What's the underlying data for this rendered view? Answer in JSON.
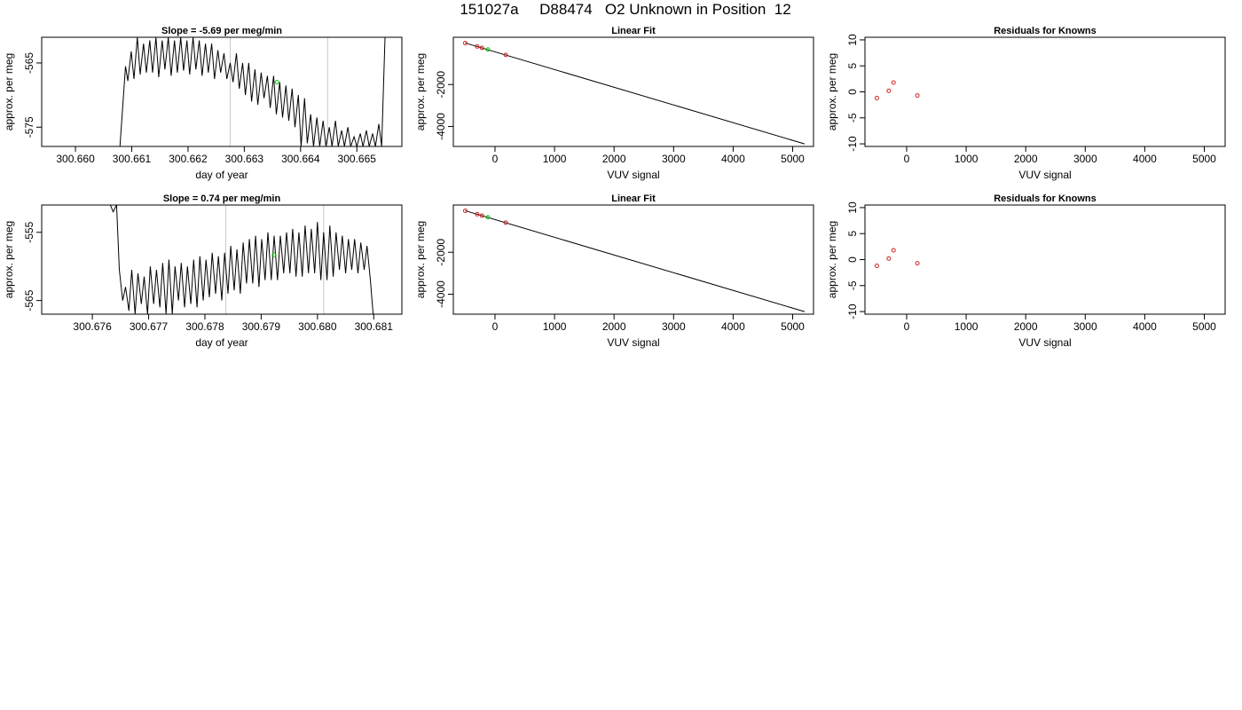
{
  "page_title": "151027a     D88474   O2 Unknown in Position  12",
  "chart_data": [
    {
      "type": "line",
      "title": "Slope =  -5.69  per meg/min",
      "xlabel": "day of year",
      "ylabel": "approx. per meg",
      "xlim": [
        300.6594,
        300.6658
      ],
      "ylim": [
        -578,
        -561
      ],
      "xticks": [
        300.66,
        300.661,
        300.662,
        300.663,
        300.664,
        300.665
      ],
      "xtick_labels": [
        "300.660",
        "300.661",
        "300.662",
        "300.663",
        "300.664",
        "300.665"
      ],
      "yticks": [
        -575,
        -565
      ],
      "ytick_labels": [
        "-575",
        "-565"
      ],
      "vlines": [
        300.66275,
        300.66448
      ],
      "series": [
        {
          "color": "#000000",
          "x": [
            300.66079,
            300.66089,
            300.66093,
            300.66099,
            300.66104,
            300.6611,
            300.66115,
            300.66121,
            300.66126,
            300.66132,
            300.66137,
            300.66143,
            300.66148,
            300.66154,
            300.66159,
            300.66165,
            300.6617,
            300.66176,
            300.66181,
            300.66187,
            300.66192,
            300.66198,
            300.66203,
            300.66209,
            300.66214,
            300.6622,
            300.66225,
            300.66231,
            300.66236,
            300.66242,
            300.66247,
            300.66253,
            300.66258,
            300.66264,
            300.66269,
            300.66275,
            300.6628,
            300.66286,
            300.66291,
            300.66297,
            300.66302,
            300.66308,
            300.66313,
            300.66319,
            300.66324,
            300.6633,
            300.66335,
            300.66341,
            300.66346,
            300.66352,
            300.66357,
            300.66363,
            300.66368,
            300.66374,
            300.66379,
            300.66385,
            300.6639,
            300.66396,
            300.66401,
            300.66407,
            300.66412,
            300.66418,
            300.66423,
            300.66429,
            300.66434,
            300.6644,
            300.66445,
            300.66451,
            300.66456,
            300.66462,
            300.66467,
            300.66473,
            300.66478,
            300.66484,
            300.66489,
            300.66495,
            300.665,
            300.66506,
            300.66511,
            300.66517,
            300.66522,
            300.66528,
            300.66533,
            300.66539,
            300.66544,
            300.6655
          ],
          "y": [
            -578.0,
            -565.5,
            -567.8,
            -563.2,
            -567.5,
            -561.0,
            -566.8,
            -562.0,
            -566.5,
            -561.5,
            -566.5,
            -561.0,
            -567.2,
            -561.5,
            -566.0,
            -561.0,
            -567.0,
            -561.5,
            -566.5,
            -561.0,
            -566.2,
            -561.5,
            -566.8,
            -561.0,
            -566.0,
            -561.5,
            -567.0,
            -562.0,
            -566.5,
            -562.0,
            -567.5,
            -563.0,
            -566.5,
            -563.5,
            -567.5,
            -565.0,
            -568.0,
            -563.5,
            -569.0,
            -565.0,
            -570.0,
            -565.0,
            -571.0,
            -566.0,
            -571.5,
            -566.5,
            -570.5,
            -567.0,
            -572.0,
            -567.0,
            -573.0,
            -568.0,
            -573.5,
            -568.5,
            -574.0,
            -569.0,
            -575.0,
            -570.0,
            -578.0,
            -570.5,
            -577.5,
            -573.0,
            -578.0,
            -573.5,
            -578.0,
            -574.0,
            -578.0,
            -575.0,
            -578.0,
            -574.0,
            -578.0,
            -575.5,
            -578.0,
            -575.0,
            -578.0,
            -576.5,
            -578.0,
            -576.0,
            -578.0,
            -575.5,
            -578.0,
            -576.0,
            -578.0,
            -574.5,
            -578.0,
            -561.0
          ]
        }
      ],
      "marker": {
        "x": 300.66358,
        "y": -568.0,
        "color": "#00cc00"
      }
    },
    {
      "type": "scatter",
      "title": "Linear Fit",
      "xlabel": "VUV signal",
      "ylabel": "approx. per meg",
      "xlim": [
        -700,
        5350
      ],
      "ylim": [
        -4950,
        250
      ],
      "xticks": [
        0,
        1000,
        2000,
        3000,
        4000,
        5000
      ],
      "xtick_labels": [
        "0",
        "1000",
        "2000",
        "3000",
        "4000",
        "5000"
      ],
      "yticks": [
        -4000,
        -2000
      ],
      "ytick_labels": [
        "-4000",
        "-2000"
      ],
      "fit_line": {
        "x": [
          -500,
          5200
        ],
        "y": [
          -22,
          -4830
        ]
      },
      "points": {
        "x": [
          -500,
          -300,
          -220,
          180
        ],
        "y": [
          -24,
          -190,
          -255,
          -592
        ],
        "color": "#cc2222"
      },
      "marker": {
        "x": -120,
        "y": -330,
        "color": "#00cc00"
      }
    },
    {
      "type": "scatter",
      "title": "Residuals for Knowns",
      "xlabel": "VUV signal",
      "ylabel": "approx. per meg",
      "xlim": [
        -700,
        5350
      ],
      "ylim": [
        -10.5,
        10.5
      ],
      "xticks": [
        0,
        1000,
        2000,
        3000,
        4000,
        5000
      ],
      "xtick_labels": [
        "0",
        "1000",
        "2000",
        "3000",
        "4000",
        "5000"
      ],
      "yticks": [
        -10,
        -5,
        0,
        5,
        10
      ],
      "ytick_labels": [
        "-10",
        "-5",
        "0",
        "5",
        "10"
      ],
      "points": {
        "x": [
          -500,
          -300,
          -220,
          180
        ],
        "y": [
          -1.2,
          0.2,
          1.8,
          -0.7
        ],
        "color": "#cc2222"
      }
    },
    {
      "type": "line",
      "title": "Slope =  0.74  per meg/min",
      "xlabel": "day of year",
      "ylabel": "approx. per meg",
      "xlim": [
        300.6751,
        300.6815
      ],
      "ylim": [
        -567,
        -551
      ],
      "xticks": [
        300.676,
        300.677,
        300.678,
        300.679,
        300.68,
        300.681
      ],
      "xtick_labels": [
        "300.676",
        "300.677",
        "300.678",
        "300.679",
        "300.680",
        "300.681"
      ],
      "yticks": [
        -565,
        -555
      ],
      "ytick_labels": [
        "-565",
        "-555"
      ],
      "vlines": [
        300.67837,
        300.68011
      ],
      "series": [
        {
          "color": "#000000",
          "x": [
            300.67632,
            300.67637,
            300.67643,
            300.67648,
            300.67654,
            300.67659,
            300.67665,
            300.6767,
            300.67676,
            300.67681,
            300.67687,
            300.67692,
            300.67698,
            300.67703,
            300.67709,
            300.67714,
            300.6772,
            300.67725,
            300.67731,
            300.67736,
            300.67742,
            300.67747,
            300.67753,
            300.67758,
            300.67764,
            300.67769,
            300.67775,
            300.6778,
            300.67786,
            300.67791,
            300.67797,
            300.67802,
            300.67808,
            300.67813,
            300.67819,
            300.67824,
            300.6783,
            300.67835,
            300.67841,
            300.67846,
            300.67852,
            300.67857,
            300.67863,
            300.67868,
            300.67874,
            300.67879,
            300.67885,
            300.6789,
            300.67896,
            300.67901,
            300.67907,
            300.67912,
            300.67918,
            300.67923,
            300.67929,
            300.67934,
            300.6794,
            300.67945,
            300.67951,
            300.67956,
            300.67962,
            300.67967,
            300.67973,
            300.67978,
            300.67984,
            300.67989,
            300.67995,
            300.68,
            300.68006,
            300.68011,
            300.68017,
            300.68022,
            300.68028,
            300.68033,
            300.68039,
            300.68044,
            300.6805,
            300.68055,
            300.68061,
            300.68066,
            300.68072,
            300.68077,
            300.68083,
            300.68088,
            300.68094,
            300.68099
          ],
          "y": [
            -551.0,
            -552.0,
            -551.0,
            -560.5,
            -565.0,
            -563.0,
            -566.5,
            -560.5,
            -567.0,
            -561.0,
            -565.5,
            -561.5,
            -567.0,
            -560.0,
            -565.5,
            -560.5,
            -566.0,
            -559.5,
            -567.0,
            -559.0,
            -567.0,
            -560.0,
            -565.0,
            -559.5,
            -566.0,
            -560.0,
            -565.5,
            -559.0,
            -566.0,
            -558.5,
            -565.0,
            -559.0,
            -564.5,
            -558.0,
            -564.0,
            -558.5,
            -565.0,
            -558.0,
            -564.0,
            -557.0,
            -563.5,
            -557.5,
            -564.0,
            -556.5,
            -562.5,
            -556.0,
            -562.5,
            -555.5,
            -563.0,
            -556.0,
            -562.0,
            -555.0,
            -562.0,
            -555.5,
            -562.0,
            -555.5,
            -561.0,
            -555.0,
            -561.0,
            -554.5,
            -561.5,
            -555.0,
            -561.5,
            -554.0,
            -561.0,
            -554.5,
            -561.0,
            -553.5,
            -562.0,
            -555.0,
            -562.0,
            -554.0,
            -561.5,
            -555.0,
            -560.5,
            -555.5,
            -561.0,
            -556.0,
            -560.5,
            -556.0,
            -561.0,
            -556.5,
            -560.5,
            -557.0,
            -562.0,
            -567.0
          ]
        }
      ],
      "marker": {
        "x": 300.67923,
        "y": -558.3,
        "color": "#00cc00"
      }
    },
    {
      "type": "scatter",
      "title": "Linear Fit",
      "xlabel": "VUV signal",
      "ylabel": "approx. per meg",
      "xlim": [
        -700,
        5350
      ],
      "ylim": [
        -4950,
        250
      ],
      "xticks": [
        0,
        1000,
        2000,
        3000,
        4000,
        5000
      ],
      "xtick_labels": [
        "0",
        "1000",
        "2000",
        "3000",
        "4000",
        "5000"
      ],
      "yticks": [
        -4000,
        -2000
      ],
      "ytick_labels": [
        "-4000",
        "-2000"
      ],
      "fit_line": {
        "x": [
          -500,
          5200
        ],
        "y": [
          -22,
          -4830
        ]
      },
      "points": {
        "x": [
          -500,
          -300,
          -220,
          180
        ],
        "y": [
          -24,
          -190,
          -255,
          -592
        ],
        "color": "#cc2222"
      },
      "marker": {
        "x": -120,
        "y": -330,
        "color": "#00cc00"
      }
    },
    {
      "type": "scatter",
      "title": "Residuals for Knowns",
      "xlabel": "VUV signal",
      "ylabel": "approx. per meg",
      "xlim": [
        -700,
        5350
      ],
      "ylim": [
        -10.5,
        10.5
      ],
      "xticks": [
        0,
        1000,
        2000,
        3000,
        4000,
        5000
      ],
      "xtick_labels": [
        "0",
        "1000",
        "2000",
        "3000",
        "4000",
        "5000"
      ],
      "yticks": [
        -10,
        -5,
        0,
        5,
        10
      ],
      "ytick_labels": [
        "-10",
        "-5",
        "0",
        "5",
        "10"
      ],
      "points": {
        "x": [
          -500,
          -300,
          -220,
          180
        ],
        "y": [
          -1.2,
          0.2,
          1.8,
          -0.7
        ],
        "color": "#cc2222"
      }
    }
  ]
}
